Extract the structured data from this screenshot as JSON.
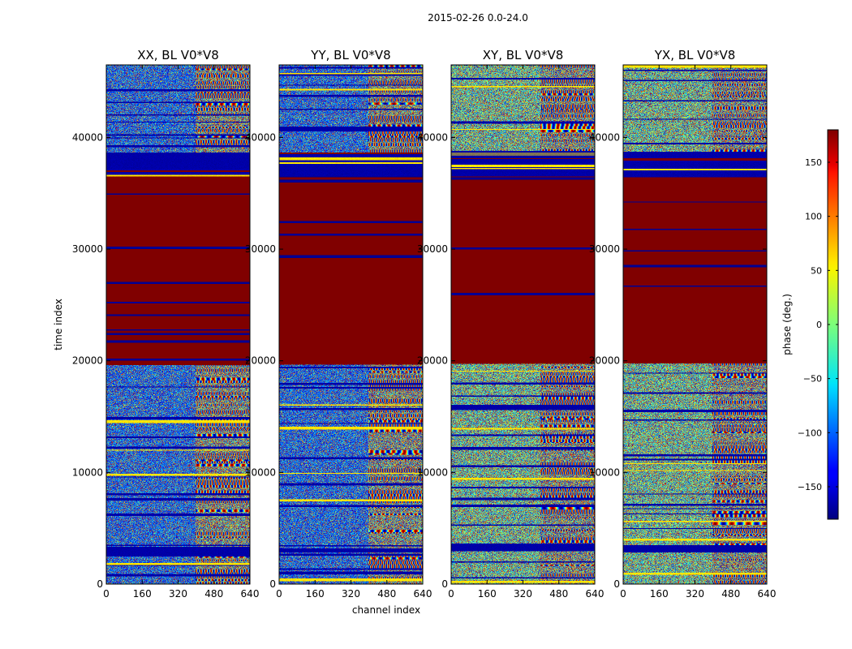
{
  "chart_data": {
    "type": "heatmap",
    "suptitle": "2015-02-26 0.0-24.0",
    "xlabel": "channel index",
    "ylabel": "time index",
    "xlim": [
      0,
      640
    ],
    "ylim": [
      0,
      46500
    ],
    "x_ticks": [
      {
        "value": 0,
        "label": "0"
      },
      {
        "value": 160,
        "label": "160"
      },
      {
        "value": 320,
        "label": "320"
      },
      {
        "value": 480,
        "label": "480"
      },
      {
        "value": 640,
        "label": "640"
      }
    ],
    "y_ticks": [
      {
        "value": 0,
        "label": "0"
      },
      {
        "value": 10000,
        "label": "10000"
      },
      {
        "value": 20000,
        "label": "20000"
      },
      {
        "value": 30000,
        "label": "30000"
      },
      {
        "value": 40000,
        "label": "40000"
      }
    ],
    "panels": [
      {
        "name": "XX",
        "title": "XX, BL V0*V8",
        "low_channel_bias": "blue"
      },
      {
        "name": "YY",
        "title": "YY, BL V0*V8",
        "low_channel_bias": "blue"
      },
      {
        "name": "XY",
        "title": "XY, BL V0*V8",
        "low_channel_bias": "none"
      },
      {
        "name": "YX",
        "title": "YX, BL V0*V8",
        "low_channel_bias": "none"
      }
    ],
    "saturated_band": {
      "t_start": 19800,
      "t_end": 36600,
      "phase": 180
    },
    "colorbar": {
      "label": "phase (deg.)",
      "range": [
        -180,
        180
      ],
      "colormap": "jet",
      "ticks": [
        {
          "value": 150,
          "label": "150"
        },
        {
          "value": 100,
          "label": "100"
        },
        {
          "value": 50,
          "label": "50"
        },
        {
          "value": 0,
          "label": "0"
        },
        {
          "value": -50,
          "label": "−50"
        },
        {
          "value": -100,
          "label": "−100"
        },
        {
          "value": -150,
          "label": "−150"
        }
      ]
    }
  }
}
